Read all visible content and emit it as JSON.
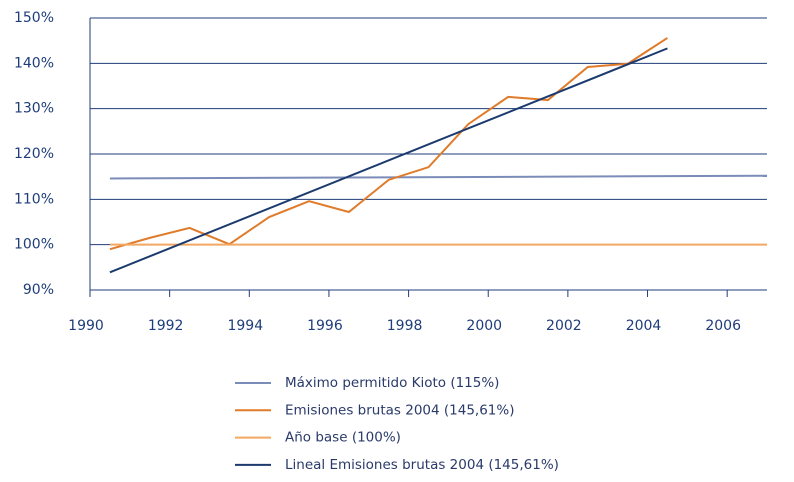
{
  "chart_data": {
    "type": "line",
    "series": [
      {
        "name": "Máximo permitido Kioto (115%)",
        "color": "#7c8cb8",
        "x": [
          1990.5,
          2007
        ],
        "values": [
          114.6,
          115.2
        ]
      },
      {
        "name": "Emisiones brutas 2004 (145,61%)",
        "color": "#e07b2a",
        "x": [
          1990.5,
          1991.5,
          1992.5,
          1993.5,
          1994.5,
          1995.5,
          1996.5,
          1997.5,
          1998.5,
          1999.5,
          2000.5,
          2001.5,
          2002.5,
          2003.5,
          2004.5
        ],
        "values": [
          99.0,
          101.5,
          103.7,
          100.1,
          106.1,
          109.6,
          107.2,
          114.3,
          117.1,
          126.6,
          132.6,
          131.9,
          139.2,
          139.9,
          145.6
        ]
      },
      {
        "name": "Año base (100%)",
        "color": "#f2a862",
        "x": [
          1990.5,
          2007
        ],
        "values": [
          100,
          100
        ]
      },
      {
        "name": "Lineal Emisiones brutas 2004 (145,61%)",
        "color": "#1b3a6e",
        "x": [
          1990.5,
          2004.5
        ],
        "values": [
          93.9,
          143.3
        ]
      }
    ],
    "xlim": [
      1990,
      2007
    ],
    "xticks": [
      1990,
      1992,
      1994,
      1996,
      1998,
      2000,
      2002,
      2004,
      2006
    ],
    "ylim": [
      90,
      150
    ],
    "yticks": [
      {
        "value": 90,
        "label": "90%"
      },
      {
        "value": 100,
        "label": "100%"
      },
      {
        "value": 110,
        "label": "110%"
      },
      {
        "value": 120,
        "label": "120%"
      },
      {
        "value": 130,
        "label": "130%"
      },
      {
        "value": 140,
        "label": "140%"
      },
      {
        "value": 150,
        "label": "150%"
      }
    ],
    "grid": true,
    "legend": "bottom"
  }
}
